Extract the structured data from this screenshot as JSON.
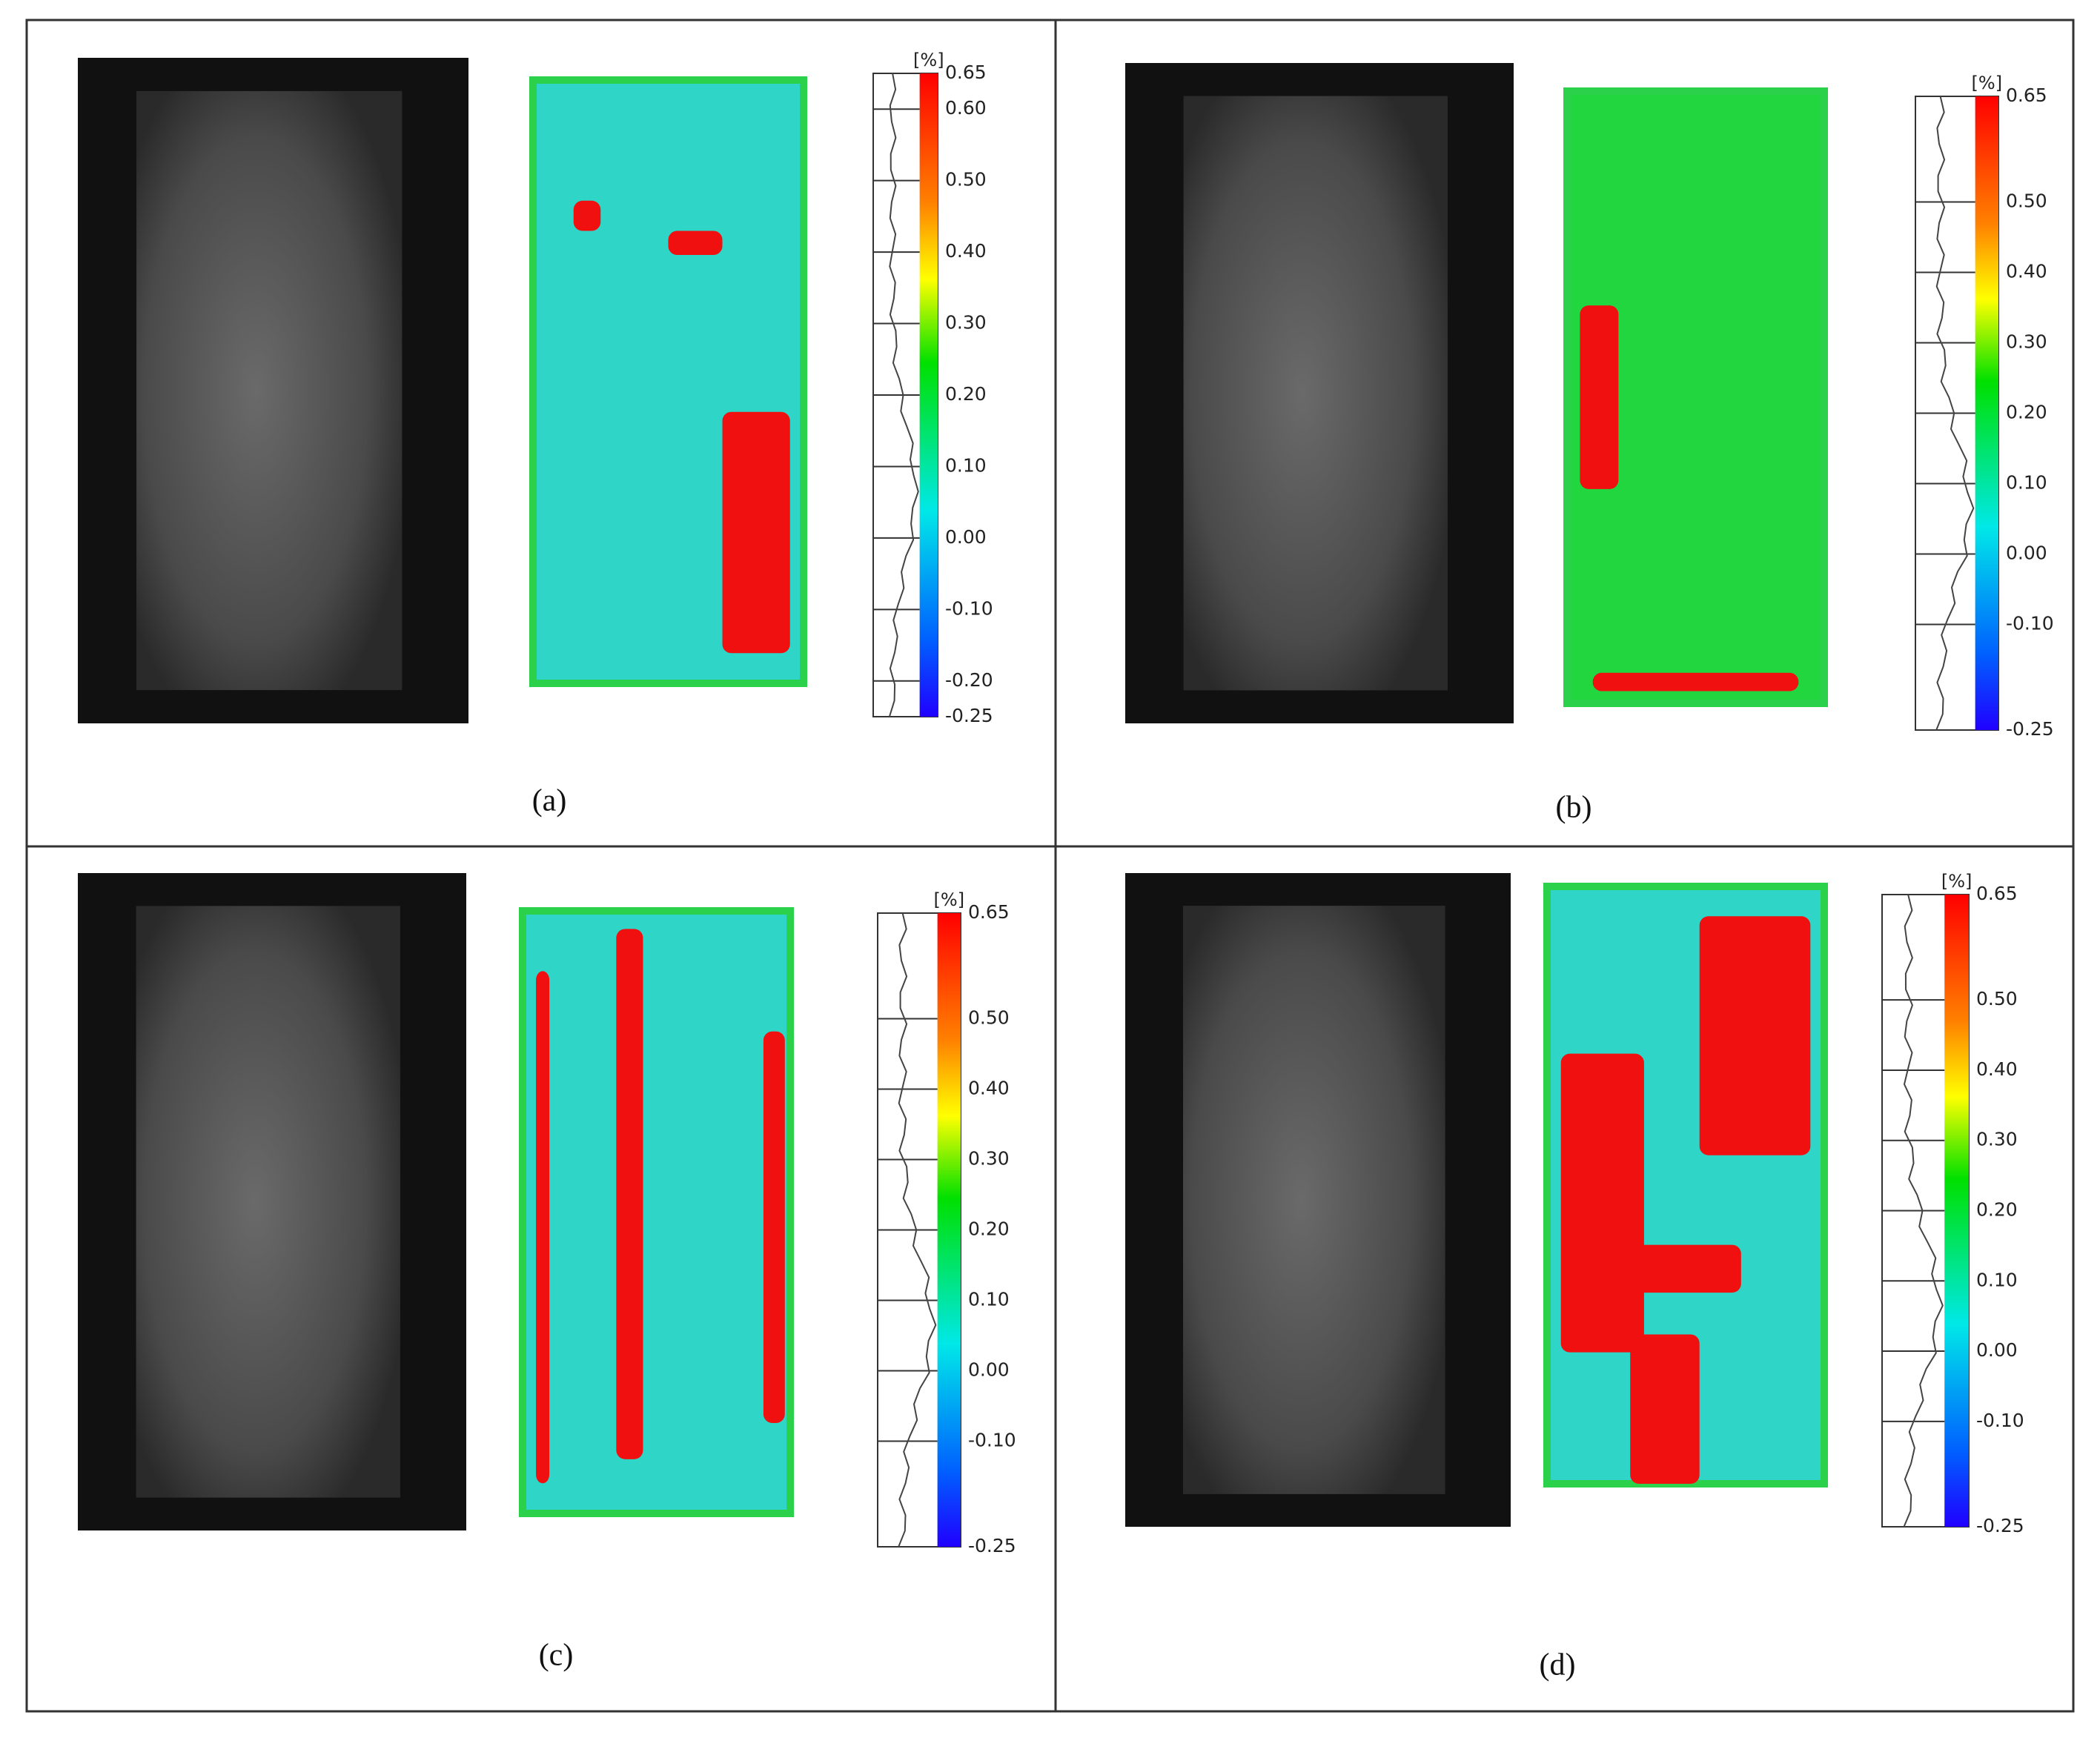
{
  "panels": [
    {
      "label": "(a)",
      "unit": "[%]",
      "ticks": [
        {
          "value": 0.65,
          "label": "0.65"
        },
        {
          "value": 0.6,
          "label": "0.60"
        },
        {
          "value": 0.5,
          "label": "0.50"
        },
        {
          "value": 0.4,
          "label": "0.40"
        },
        {
          "value": 0.3,
          "label": "0.30"
        },
        {
          "value": 0.2,
          "label": "0.20"
        },
        {
          "value": 0.1,
          "label": "0.10"
        },
        {
          "value": 0,
          "label": "0.00"
        },
        {
          "value": -0.1,
          "label": "-0.10"
        },
        {
          "value": -0.2,
          "label": "-0.20"
        },
        {
          "value": -0.25,
          "label": "-0.25"
        }
      ]
    },
    {
      "label": "(b)",
      "unit": "[%]",
      "ticks": [
        {
          "value": 0.65,
          "label": "0.65"
        },
        {
          "value": 0.5,
          "label": "0.50"
        },
        {
          "value": 0.4,
          "label": "0.40"
        },
        {
          "value": 0.3,
          "label": "0.30"
        },
        {
          "value": 0.2,
          "label": "0.20"
        },
        {
          "value": 0.1,
          "label": "0.10"
        },
        {
          "value": 0,
          "label": "0.00"
        },
        {
          "value": -0.1,
          "label": "-0.10"
        },
        {
          "value": -0.25,
          "label": "-0.25"
        }
      ]
    },
    {
      "label": "(c)",
      "unit": "[%]",
      "ticks": [
        {
          "value": 0.65,
          "label": "0.65"
        },
        {
          "value": 0.5,
          "label": "0.50"
        },
        {
          "value": 0.4,
          "label": "0.40"
        },
        {
          "value": 0.3,
          "label": "0.30"
        },
        {
          "value": 0.2,
          "label": "0.20"
        },
        {
          "value": 0.1,
          "label": "0.10"
        },
        {
          "value": 0,
          "label": "0.00"
        },
        {
          "value": -0.1,
          "label": "-0.10"
        },
        {
          "value": -0.25,
          "label": "-0.25"
        }
      ]
    },
    {
      "label": "(d)",
      "unit": "[%]",
      "ticks": [
        {
          "value": 0.65,
          "label": "0.65"
        },
        {
          "value": 0.5,
          "label": "0.50"
        },
        {
          "value": 0.4,
          "label": "0.40"
        },
        {
          "value": 0.3,
          "label": "0.30"
        },
        {
          "value": 0.2,
          "label": "0.20"
        },
        {
          "value": 0.1,
          "label": "0.10"
        },
        {
          "value": 0,
          "label": "0.00"
        },
        {
          "value": -0.1,
          "label": "-0.10"
        },
        {
          "value": -0.25,
          "label": "-0.25"
        }
      ]
    }
  ]
}
